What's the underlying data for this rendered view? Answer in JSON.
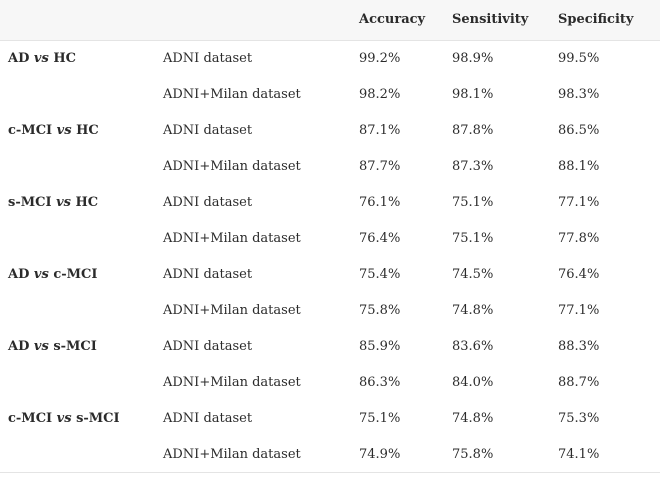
{
  "headers": [
    "",
    "",
    "Accuracy",
    "Sensitivity",
    "Specificity"
  ],
  "groups": [
    {
      "left": "AD",
      "vs": "vs",
      "right": "HC",
      "rows": [
        {
          "dataset": "ADNI dataset",
          "accuracy": "99.2%",
          "sensitivity": "98.9%",
          "specificity": "99.5%"
        },
        {
          "dataset": "ADNI+Milan dataset",
          "accuracy": "98.2%",
          "sensitivity": "98.1%",
          "specificity": "98.3%"
        }
      ]
    },
    {
      "left": "c-MCI",
      "vs": "vs",
      "right": "HC",
      "rows": [
        {
          "dataset": "ADNI dataset",
          "accuracy": "87.1%",
          "sensitivity": "87.8%",
          "specificity": "86.5%"
        },
        {
          "dataset": "ADNI+Milan dataset",
          "accuracy": "87.7%",
          "sensitivity": "87.3%",
          "specificity": "88.1%"
        }
      ]
    },
    {
      "left": "s-MCI",
      "vs": "vs",
      "right": "HC",
      "rows": [
        {
          "dataset": "ADNI dataset",
          "accuracy": "76.1%",
          "sensitivity": "75.1%",
          "specificity": "77.1%"
        },
        {
          "dataset": "ADNI+Milan dataset",
          "accuracy": "76.4%",
          "sensitivity": "75.1%",
          "specificity": "77.8%"
        }
      ]
    },
    {
      "left": "AD",
      "vs": "vs",
      "right": "c-MCI",
      "rows": [
        {
          "dataset": "ADNI dataset",
          "accuracy": "75.4%",
          "sensitivity": "74.5%",
          "specificity": "76.4%"
        },
        {
          "dataset": "ADNI+Milan dataset",
          "accuracy": "75.8%",
          "sensitivity": "74.8%",
          "specificity": "77.1%"
        }
      ]
    },
    {
      "left": "AD",
      "vs": "vs",
      "right": "s-MCI",
      "rows": [
        {
          "dataset": "ADNI dataset",
          "accuracy": "85.9%",
          "sensitivity": "83.6%",
          "specificity": "88.3%"
        },
        {
          "dataset": "ADNI+Milan dataset",
          "accuracy": "86.3%",
          "sensitivity": "84.0%",
          "specificity": "88.7%"
        }
      ]
    },
    {
      "left": "c-MCI",
      "vs": "vs",
      "right": "s-MCI",
      "rows": [
        {
          "dataset": "ADNI dataset",
          "accuracy": "75.1%",
          "sensitivity": "74.8%",
          "specificity": "75.3%"
        },
        {
          "dataset": "ADNI+Milan dataset",
          "accuracy": "74.9%",
          "sensitivity": "75.8%",
          "specificity": "74.1%"
        }
      ]
    }
  ]
}
